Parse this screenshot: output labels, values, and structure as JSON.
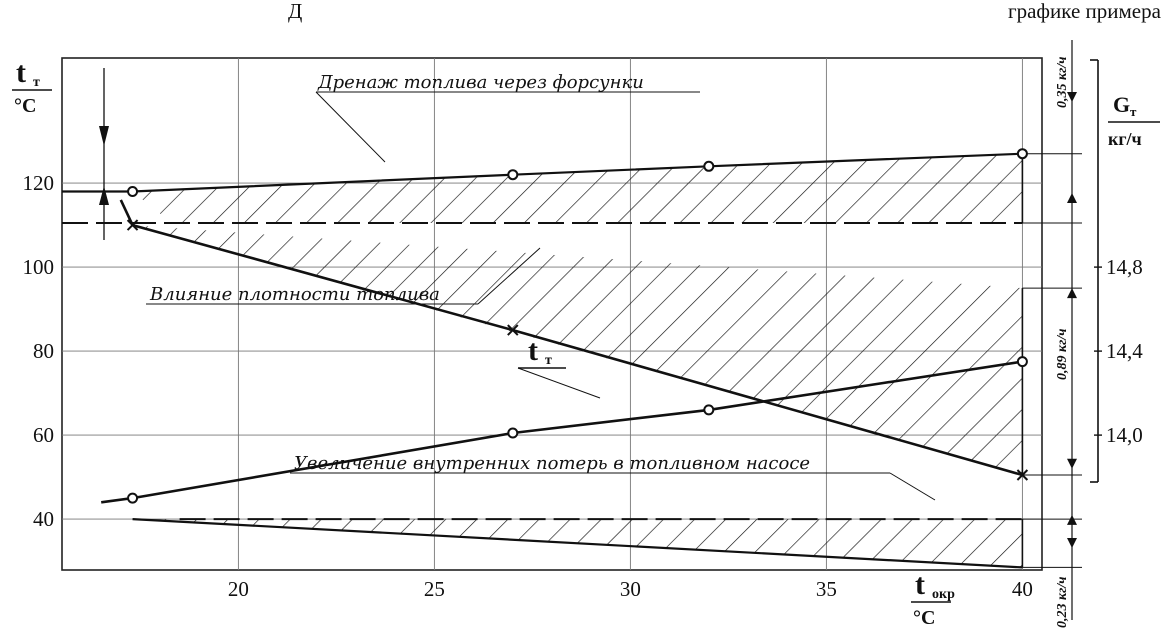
{
  "header_fragment": "Д",
  "header_fragment_right": "графике примера",
  "chart_data": {
    "type": "line",
    "xlabel": "t_окр / °C",
    "ylabel": "t_т / °C",
    "xlim": [
      15.5,
      40.5
    ],
    "ylim": [
      28,
      135
    ],
    "x_ticks": [
      20,
      25,
      30,
      35,
      40
    ],
    "y_ticks": [
      40,
      60,
      80,
      100,
      120
    ],
    "right_axis": {
      "label": "G_т / кг/ч",
      "ticks": [
        "14,8",
        "14,4",
        "14,0"
      ],
      "tick_y": [
        100,
        80,
        60
      ]
    },
    "grid": true,
    "series": [
      {
        "name": "t_т",
        "x": [
          17.3,
          27.0,
          32.0,
          40.0
        ],
        "y": [
          45,
          60.5,
          66,
          77.5
        ],
        "marker": "circle"
      },
      {
        "x": [
          17.3,
          27.0,
          40.0
        ],
        "y": [
          110,
          85,
          50.5
        ],
        "marker": "x"
      },
      {
        "x": [
          17.3,
          27.0,
          32.0,
          40.0
        ],
        "y": [
          118,
          122,
          124,
          127
        ],
        "marker": "circle"
      },
      {
        "x": [
          17.3,
          40.0
        ],
        "y": [
          40,
          28.5
        ]
      }
    ],
    "dashed_levels": [
      110.5,
      40
    ],
    "annotations": [
      "Дренаж топлива через форсунки",
      "Влияние плотности топлива",
      "Увеличение внутренних потерь в топливном насосе",
      "0,35 кг/ч",
      "0,89 кг/ч",
      "0,23 кг/ч"
    ]
  },
  "labels": {
    "y_main": "t",
    "y_sub": "т",
    "y_unit": "°C",
    "x_main": "t",
    "x_sub": "окр",
    "x_unit": "°C",
    "g_main": "G",
    "g_sub": "т",
    "g_unit": "кг/ч",
    "curve_t": "t",
    "curve_t_sub": "т"
  }
}
